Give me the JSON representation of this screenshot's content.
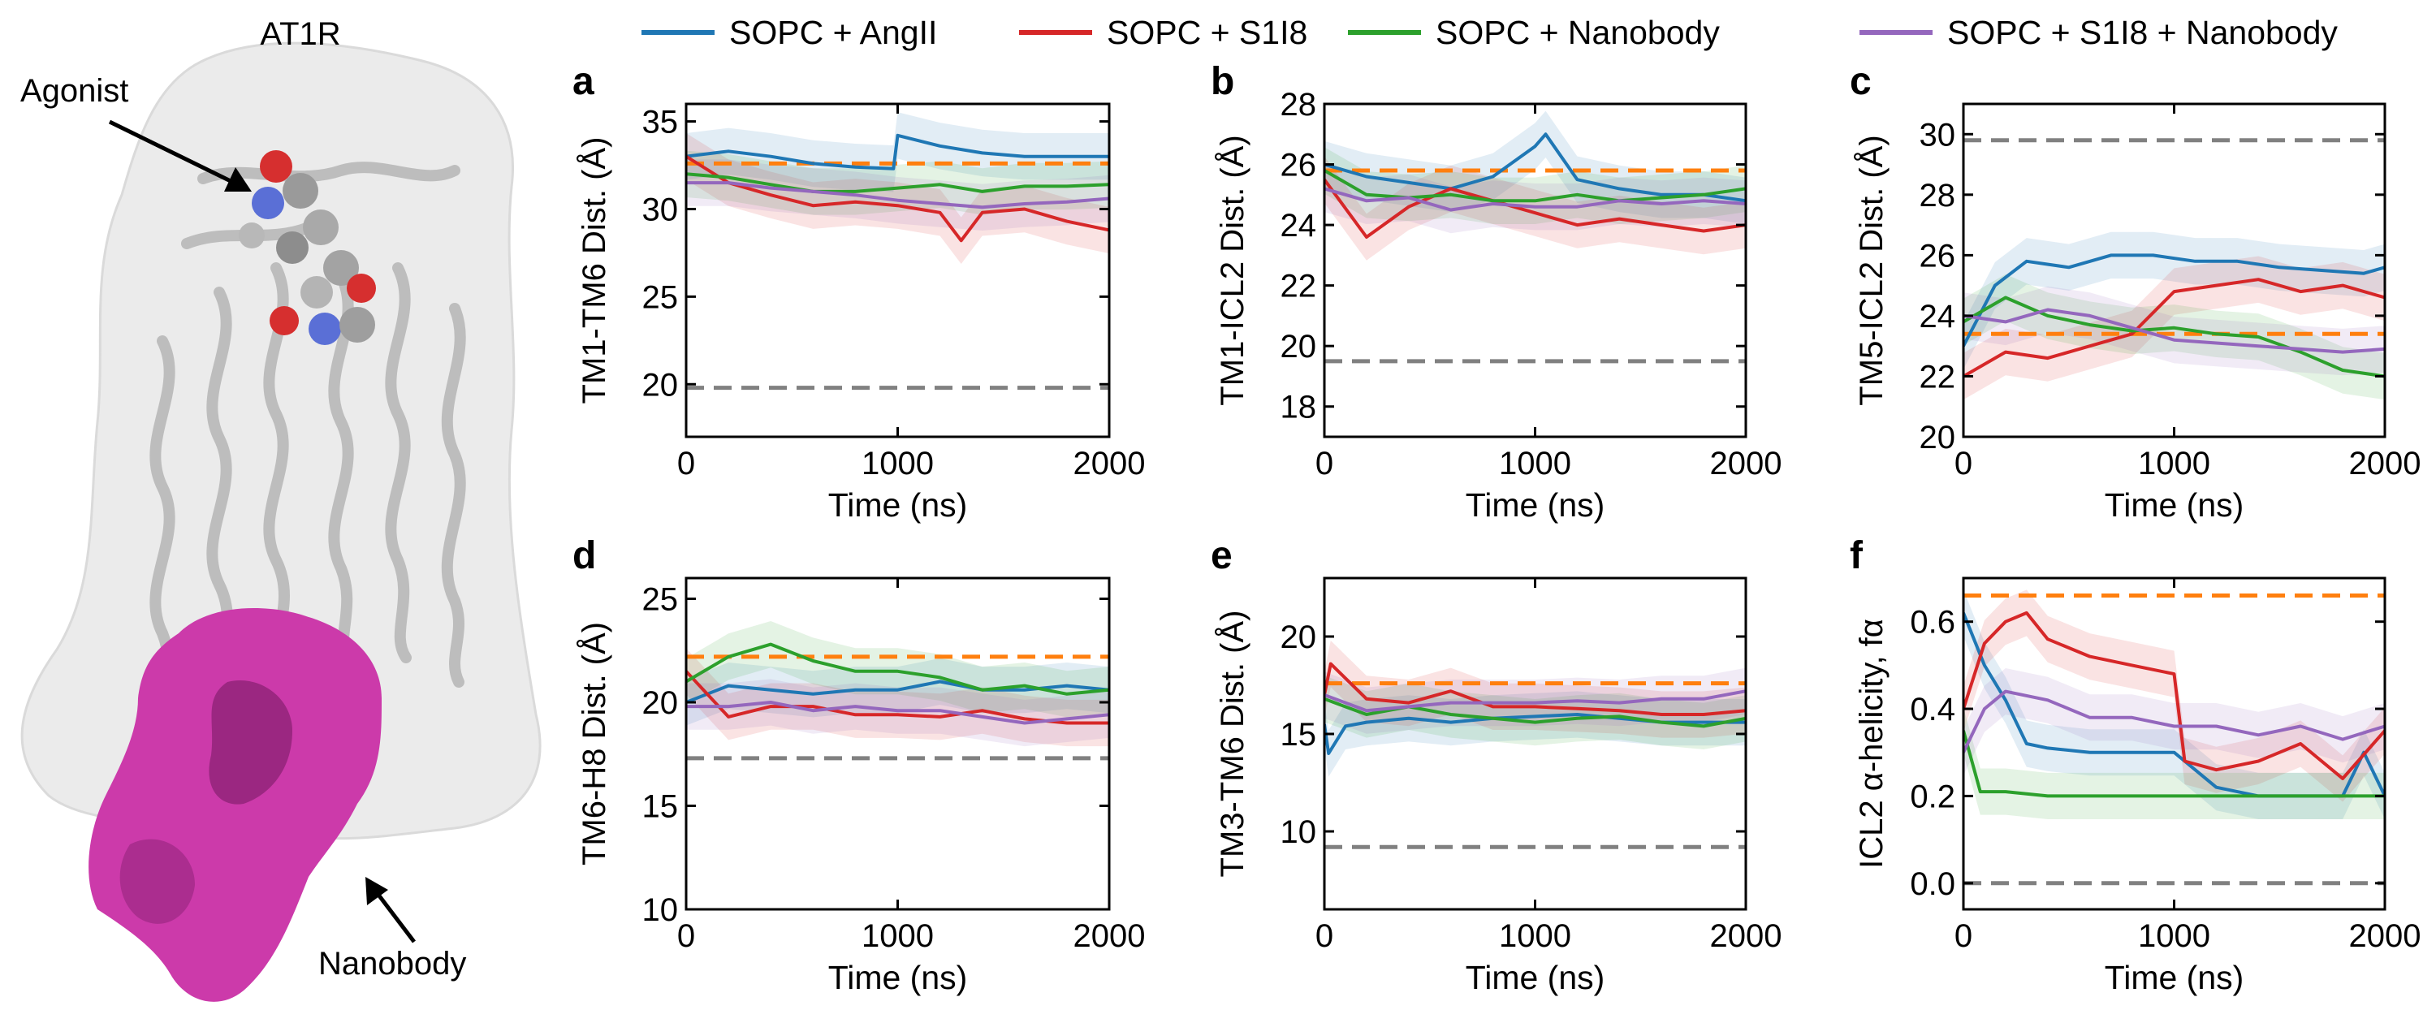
{
  "figure": {
    "protein_title": "AT1R",
    "agonist_label": "Agonist",
    "nanobody_label": "Nanobody"
  },
  "legend": [
    {
      "label": "SOPC + AngII",
      "color": "#1f77b4"
    },
    {
      "label": "SOPC + S1I8",
      "color": "#d62728"
    },
    {
      "label": "SOPC + Nanobody",
      "color": "#2ca02c"
    },
    {
      "label": "SOPC + S1I8 + Nanobody",
      "color": "#9467bd"
    }
  ],
  "reference_line_colors": {
    "orange": "#ff7f0e",
    "gray": "#808080"
  },
  "chart_data": [
    {
      "panel": "a",
      "type": "line",
      "xlabel": "Time (ns)",
      "ylabel": "TM1-TM6 Dist. (Å)",
      "xlim": [
        0,
        2000
      ],
      "ylim": [
        17,
        36
      ],
      "xticks": [
        0,
        1000,
        2000
      ],
      "yticks": [
        20,
        25,
        30,
        35
      ],
      "reference_lines": {
        "orange": 32.6,
        "gray": 19.8
      },
      "series": [
        {
          "name": "SOPC + AngII",
          "x": [
            0,
            200,
            400,
            600,
            800,
            980,
            1000,
            1200,
            1400,
            1600,
            1800,
            2000
          ],
          "y": [
            33.0,
            33.3,
            33.0,
            32.6,
            32.4,
            32.3,
            34.2,
            33.6,
            33.2,
            33.0,
            33.0,
            33.0
          ]
        },
        {
          "name": "SOPC + S1I8",
          "x": [
            0,
            200,
            400,
            600,
            800,
            1000,
            1200,
            1300,
            1400,
            1600,
            1800,
            2000
          ],
          "y": [
            33.0,
            31.5,
            30.8,
            30.2,
            30.4,
            30.2,
            29.8,
            28.2,
            29.8,
            30.0,
            29.3,
            28.8
          ]
        },
        {
          "name": "SOPC + Nanobody",
          "x": [
            0,
            200,
            400,
            600,
            800,
            1000,
            1200,
            1400,
            1600,
            1800,
            2000
          ],
          "y": [
            32.0,
            31.8,
            31.4,
            31.0,
            31.0,
            31.2,
            31.4,
            31.0,
            31.3,
            31.3,
            31.4
          ]
        },
        {
          "name": "SOPC + S1I8 + Nanobody",
          "x": [
            0,
            200,
            400,
            600,
            800,
            1000,
            1200,
            1400,
            1600,
            1800,
            2000
          ],
          "y": [
            31.5,
            31.5,
            31.2,
            31.0,
            30.8,
            30.5,
            30.3,
            30.1,
            30.3,
            30.4,
            30.6
          ]
        }
      ]
    },
    {
      "panel": "b",
      "type": "line",
      "xlabel": "Time (ns)",
      "ylabel": "TM1-ICL2 Dist. (Å)",
      "xlim": [
        0,
        2000
      ],
      "ylim": [
        17,
        28
      ],
      "xticks": [
        0,
        1000,
        2000
      ],
      "yticks": [
        18,
        20,
        22,
        24,
        26,
        28
      ],
      "reference_lines": {
        "orange": 25.8,
        "gray": 19.5
      },
      "series": [
        {
          "name": "SOPC + AngII",
          "x": [
            0,
            200,
            400,
            600,
            800,
            1000,
            1050,
            1200,
            1400,
            1600,
            1800,
            2000
          ],
          "y": [
            26.0,
            25.6,
            25.4,
            25.2,
            25.6,
            26.6,
            27.0,
            25.5,
            25.2,
            25.0,
            25.0,
            24.8
          ]
        },
        {
          "name": "SOPC + S1I8",
          "x": [
            0,
            200,
            400,
            600,
            800,
            1000,
            1200,
            1400,
            1600,
            1800,
            2000
          ],
          "y": [
            25.5,
            23.6,
            24.6,
            25.2,
            24.8,
            24.4,
            24.0,
            24.2,
            24.0,
            23.8,
            24.0
          ]
        },
        {
          "name": "SOPC + Nanobody",
          "x": [
            0,
            200,
            400,
            600,
            800,
            1000,
            1200,
            1400,
            1600,
            1800,
            2000
          ],
          "y": [
            25.8,
            25.0,
            24.9,
            25.0,
            24.8,
            24.8,
            25.0,
            24.8,
            24.9,
            25.0,
            25.2
          ]
        },
        {
          "name": "SOPC + S1I8 + Nanobody",
          "x": [
            0,
            200,
            400,
            600,
            800,
            1000,
            1200,
            1400,
            1600,
            1800,
            2000
          ],
          "y": [
            25.2,
            24.8,
            24.9,
            24.5,
            24.7,
            24.6,
            24.6,
            24.8,
            24.7,
            24.8,
            24.7
          ]
        }
      ]
    },
    {
      "panel": "c",
      "type": "line",
      "xlabel": "Time (ns)",
      "ylabel": "TM5-ICL2 Dist. (Å)",
      "xlim": [
        0,
        2000
      ],
      "ylim": [
        20,
        31
      ],
      "xticks": [
        0,
        1000,
        2000
      ],
      "yticks": [
        20,
        22,
        24,
        26,
        28,
        30
      ],
      "reference_lines": {
        "orange": 23.4,
        "gray": 29.8
      },
      "series": [
        {
          "name": "SOPC + AngII",
          "x": [
            0,
            150,
            300,
            500,
            700,
            900,
            1100,
            1300,
            1500,
            1700,
            1900,
            2000
          ],
          "y": [
            23.0,
            25.0,
            25.8,
            25.6,
            26.0,
            26.0,
            25.8,
            25.8,
            25.6,
            25.5,
            25.4,
            25.6
          ]
        },
        {
          "name": "SOPC + S1I8",
          "x": [
            0,
            200,
            400,
            600,
            800,
            1000,
            1200,
            1400,
            1600,
            1800,
            2000
          ],
          "y": [
            22.0,
            22.8,
            22.6,
            23.0,
            23.4,
            24.8,
            25.0,
            25.2,
            24.8,
            25.0,
            24.6
          ]
        },
        {
          "name": "SOPC + Nanobody",
          "x": [
            0,
            200,
            400,
            600,
            800,
            1000,
            1200,
            1400,
            1600,
            1800,
            2000
          ],
          "y": [
            23.8,
            24.6,
            24.0,
            23.7,
            23.5,
            23.6,
            23.4,
            23.3,
            22.8,
            22.2,
            22.0
          ]
        },
        {
          "name": "SOPC + S1I8 + Nanobody",
          "x": [
            0,
            200,
            400,
            600,
            800,
            1000,
            1200,
            1400,
            1600,
            1800,
            2000
          ],
          "y": [
            24.0,
            23.8,
            24.2,
            24.0,
            23.6,
            23.2,
            23.1,
            23.0,
            22.9,
            22.8,
            22.9
          ]
        }
      ]
    },
    {
      "panel": "d",
      "type": "line",
      "xlabel": "Time (ns)",
      "ylabel": "TM6-H8 Dist. (Å)",
      "xlim": [
        0,
        2000
      ],
      "ylim": [
        10,
        26
      ],
      "xticks": [
        0,
        1000,
        2000
      ],
      "yticks": [
        10,
        15,
        20,
        25
      ],
      "reference_lines": {
        "orange": 22.2,
        "gray": 17.3
      },
      "series": [
        {
          "name": "SOPC + AngII",
          "x": [
            0,
            200,
            400,
            600,
            800,
            1000,
            1200,
            1400,
            1600,
            1800,
            2000
          ],
          "y": [
            20.0,
            20.8,
            20.6,
            20.4,
            20.6,
            20.6,
            21.0,
            20.6,
            20.6,
            20.8,
            20.6
          ]
        },
        {
          "name": "SOPC + S1I8",
          "x": [
            0,
            200,
            400,
            600,
            800,
            1000,
            1200,
            1400,
            1600,
            1800,
            2000
          ],
          "y": [
            21.5,
            19.3,
            19.8,
            19.8,
            19.4,
            19.4,
            19.3,
            19.6,
            19.2,
            19.0,
            19.0
          ]
        },
        {
          "name": "SOPC + Nanobody",
          "x": [
            0,
            200,
            400,
            600,
            800,
            1000,
            1200,
            1400,
            1600,
            1800,
            2000
          ],
          "y": [
            21.0,
            22.2,
            22.8,
            22.0,
            21.5,
            21.5,
            21.2,
            20.6,
            20.8,
            20.4,
            20.6
          ]
        },
        {
          "name": "SOPC + S1I8 + Nanobody",
          "x": [
            0,
            200,
            400,
            600,
            800,
            1000,
            1200,
            1400,
            1600,
            1800,
            2000
          ],
          "y": [
            19.8,
            19.8,
            20.0,
            19.6,
            19.8,
            19.6,
            19.6,
            19.3,
            19.0,
            19.2,
            19.4
          ]
        }
      ]
    },
    {
      "panel": "e",
      "type": "line",
      "xlabel": "Time (ns)",
      "ylabel": "TM3-TM6 Dist. (Å)",
      "xlim": [
        0,
        2000
      ],
      "ylim": [
        6,
        23
      ],
      "xticks": [
        0,
        1000,
        2000
      ],
      "yticks": [
        10,
        15,
        20
      ],
      "reference_lines": {
        "orange": 17.6,
        "gray": 9.2
      },
      "series": [
        {
          "name": "SOPC + AngII",
          "x": [
            0,
            20,
            100,
            200,
            400,
            600,
            800,
            1000,
            1200,
            1400,
            1600,
            1800,
            2000
          ],
          "y": [
            15.5,
            14.0,
            15.4,
            15.6,
            15.8,
            15.6,
            15.8,
            15.9,
            16.0,
            15.8,
            15.6,
            15.6,
            15.6
          ]
        },
        {
          "name": "SOPC + S1I8",
          "x": [
            0,
            30,
            200,
            400,
            600,
            800,
            1000,
            1200,
            1400,
            1600,
            1800,
            2000
          ],
          "y": [
            17.0,
            18.6,
            16.8,
            16.6,
            17.2,
            16.4,
            16.4,
            16.3,
            16.2,
            16.0,
            16.0,
            16.2
          ]
        },
        {
          "name": "SOPC + Nanobody",
          "x": [
            0,
            200,
            400,
            600,
            800,
            1000,
            1200,
            1400,
            1600,
            1800,
            2000
          ],
          "y": [
            16.8,
            16.0,
            16.4,
            16.0,
            15.8,
            15.6,
            15.8,
            15.9,
            15.6,
            15.4,
            15.8
          ]
        },
        {
          "name": "SOPC + S1I8 + Nanobody",
          "x": [
            0,
            200,
            400,
            600,
            800,
            1000,
            1200,
            1400,
            1600,
            1800,
            2000
          ],
          "y": [
            17.0,
            16.2,
            16.4,
            16.6,
            16.6,
            16.6,
            16.7,
            16.6,
            16.8,
            16.8,
            17.2
          ]
        }
      ]
    },
    {
      "panel": "f",
      "type": "line",
      "xlabel": "Time (ns)",
      "ylabel": "ICL2 α-helicity, fα",
      "xlim": [
        0,
        2000
      ],
      "ylim": [
        -0.06,
        0.7
      ],
      "xticks": [
        0,
        1000,
        2000
      ],
      "yticks": [
        0.0,
        0.2,
        0.4,
        0.6
      ],
      "reference_lines": {
        "orange": 0.66,
        "gray": 0.0
      },
      "series": [
        {
          "name": "SOPC + AngII",
          "x": [
            0,
            100,
            200,
            300,
            400,
            600,
            800,
            1000,
            1200,
            1400,
            1600,
            1800,
            1900,
            2000
          ],
          "y": [
            0.62,
            0.5,
            0.42,
            0.32,
            0.31,
            0.3,
            0.3,
            0.3,
            0.22,
            0.2,
            0.2,
            0.2,
            0.3,
            0.2
          ]
        },
        {
          "name": "SOPC + S1I8",
          "x": [
            0,
            100,
            200,
            300,
            400,
            600,
            800,
            1000,
            1050,
            1200,
            1400,
            1600,
            1800,
            2000
          ],
          "y": [
            0.4,
            0.55,
            0.6,
            0.62,
            0.56,
            0.52,
            0.5,
            0.48,
            0.28,
            0.26,
            0.28,
            0.32,
            0.24,
            0.35
          ]
        },
        {
          "name": "SOPC + Nanobody",
          "x": [
            0,
            80,
            200,
            400,
            600,
            800,
            1000,
            1200,
            1400,
            1600,
            1800,
            2000
          ],
          "y": [
            0.35,
            0.21,
            0.21,
            0.2,
            0.2,
            0.2,
            0.2,
            0.2,
            0.2,
            0.2,
            0.2,
            0.2
          ]
        },
        {
          "name": "SOPC + S1I8 + Nanobody",
          "x": [
            0,
            100,
            200,
            400,
            600,
            800,
            1000,
            1200,
            1400,
            1600,
            1800,
            2000
          ],
          "y": [
            0.3,
            0.4,
            0.44,
            0.42,
            0.38,
            0.38,
            0.36,
            0.36,
            0.34,
            0.36,
            0.33,
            0.36
          ]
        }
      ]
    }
  ]
}
